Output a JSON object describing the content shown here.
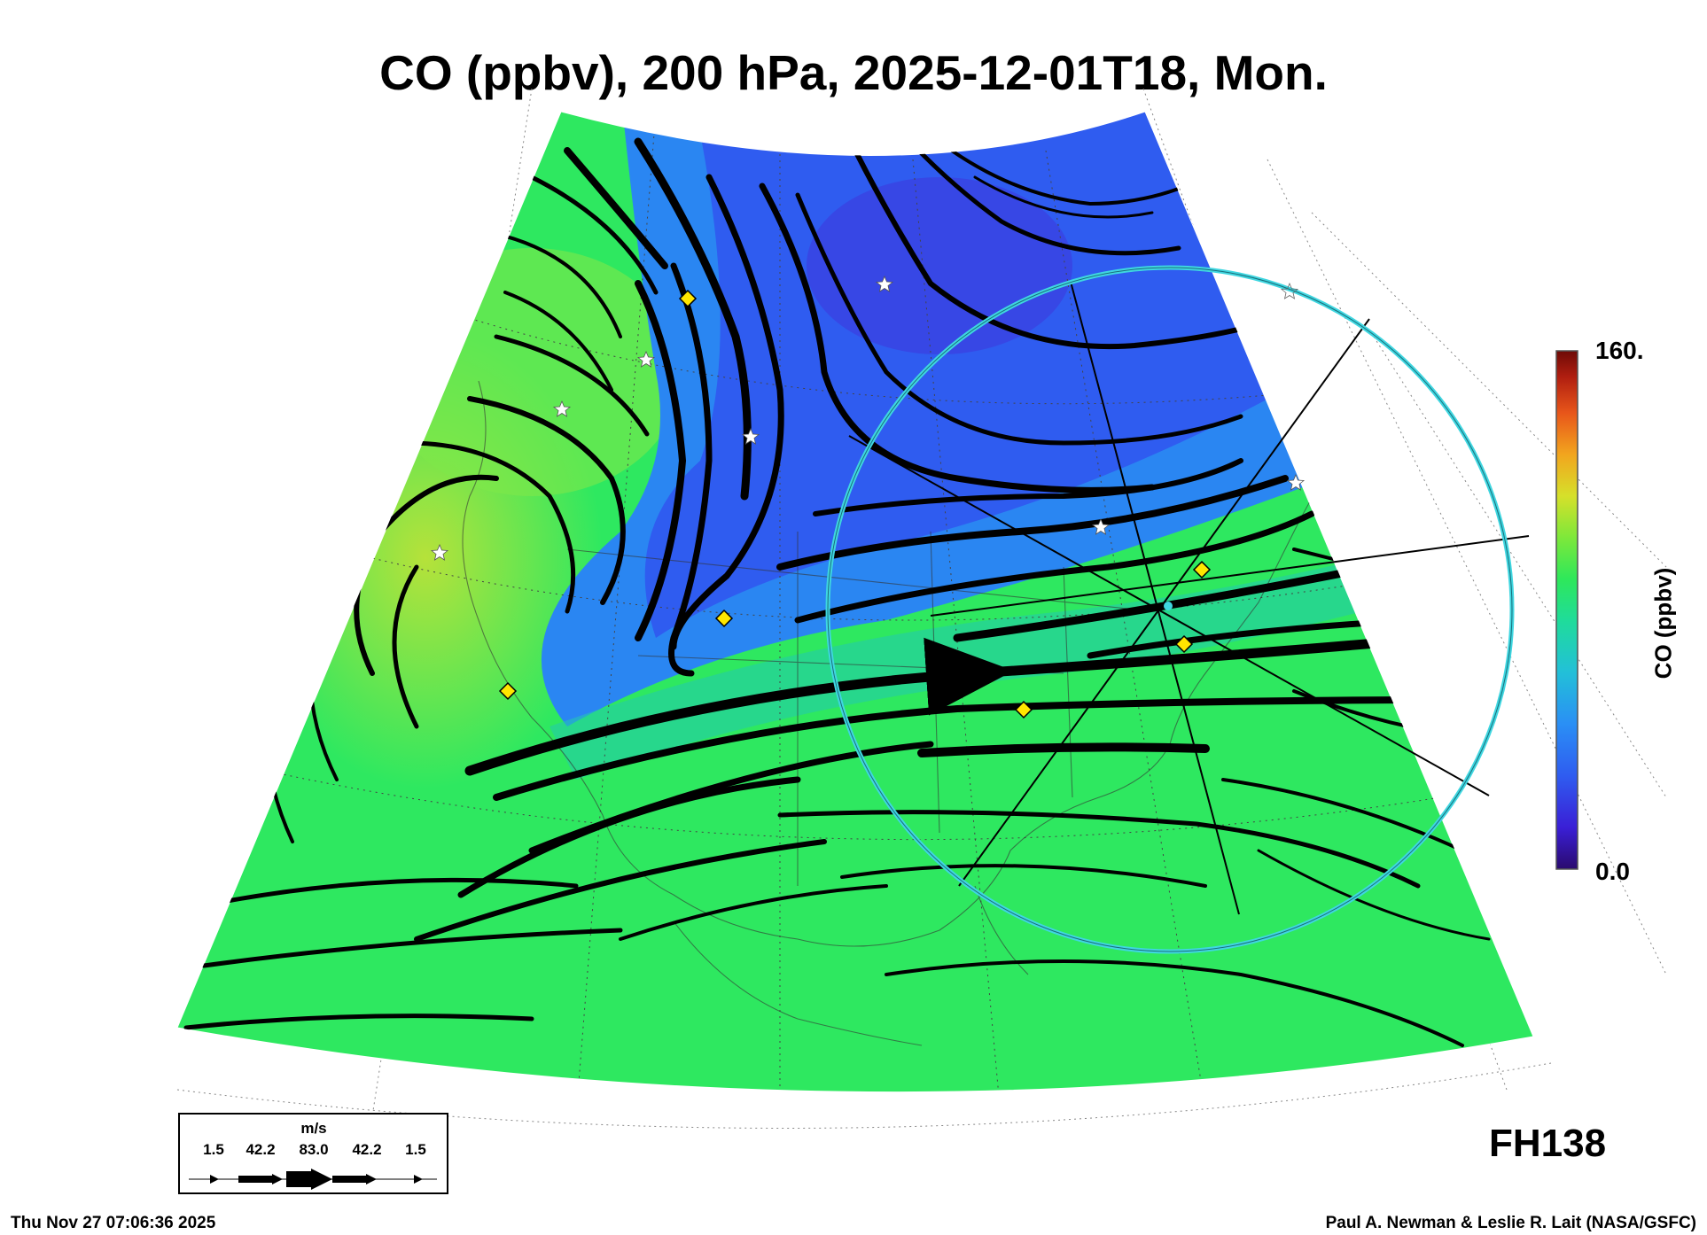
{
  "title": "CO (ppbv), 200 hPa, 2025-12-01T18, Mon.",
  "colorbar": {
    "max_label": "160.",
    "min_label": "0.0",
    "label": "CO (ppbv)",
    "colors": [
      "#2a0a6e",
      "#3a1fd6",
      "#2f5cf0",
      "#2a8ff5",
      "#22c0d8",
      "#1fdc9a",
      "#2ee85a",
      "#7ee83a",
      "#d6e02a",
      "#f2a51e",
      "#e8561a",
      "#b01e10",
      "#6e0a06"
    ]
  },
  "forecast_hour": "FH138",
  "wind_legend": {
    "unit": "m/s",
    "values": [
      "1.5",
      "42.2",
      "83.0",
      "42.2",
      "1.5"
    ]
  },
  "footer": {
    "timestamp": "Thu Nov 27 07:06:36 2025",
    "credit": "Paul A. Newman & Leslie R. Lait (NASA/GSFC)"
  },
  "colors": {
    "field_green": "#2ee860",
    "field_blue": "#2f5cf0",
    "field_yellow": "#a9e83a",
    "ring": "#3fd6e0",
    "marker_diamond": "#ffe600",
    "streamline": "#000000"
  }
}
